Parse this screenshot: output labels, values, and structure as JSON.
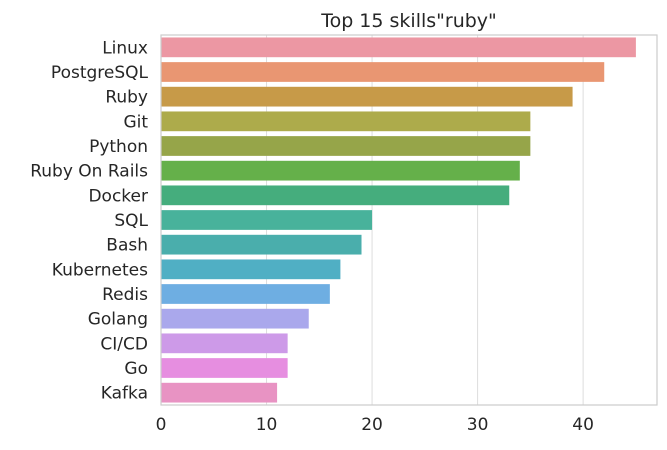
{
  "chart_data": {
    "type": "bar",
    "orientation": "horizontal",
    "title": "Top 15 skills\"ruby\"",
    "xlabel": "",
    "ylabel": "",
    "xlim": [
      0,
      47
    ],
    "xticks": [
      0,
      10,
      20,
      30,
      40
    ],
    "grid": "vertical",
    "categories": [
      "Linux",
      "PostgreSQL",
      "Ruby",
      "Git",
      "Python",
      "Ruby On Rails",
      "Docker",
      "SQL",
      "Bash",
      "Kubernetes",
      "Redis",
      "Golang",
      "CI/CD",
      "Go",
      "Kafka"
    ],
    "values": [
      45,
      42,
      39,
      35,
      35,
      34,
      33,
      20,
      19,
      17,
      16,
      14,
      12,
      12,
      11
    ],
    "colors": [
      "#ec97a3",
      "#e99672",
      "#c79a48",
      "#adab4b",
      "#96a549",
      "#65b04a",
      "#45ad7d",
      "#48b29b",
      "#4aaeac",
      "#50afc4",
      "#6eaee2",
      "#aaa8ec",
      "#cd9ae8",
      "#e68ee0",
      "#e893c3"
    ]
  }
}
